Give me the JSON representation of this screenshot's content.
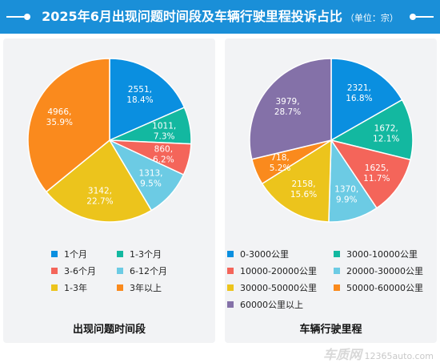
{
  "header": {
    "title": "2025年6月出现问题时间段及车辆行驶里程投诉占比",
    "unit": "（单位：宗）"
  },
  "colors": {
    "header_bg": "#1a8fd8",
    "panel_bg": "#f2f3f5"
  },
  "chart_data": [
    {
      "type": "pie",
      "title": "出现问题时间段",
      "legend_position": "bottom",
      "slices": [
        {
          "label": "1个月",
          "value": 2551,
          "percent": "18.4%",
          "color": "#0a8fe0"
        },
        {
          "label": "1-3个月",
          "value": 1011,
          "percent": "7.3%",
          "color": "#13b8a0"
        },
        {
          "label": "3-6个月",
          "value": 860,
          "percent": "6.2%",
          "color": "#f4655a"
        },
        {
          "label": "6-12个月",
          "value": 1313,
          "percent": "9.5%",
          "color": "#6ccbe4"
        },
        {
          "label": "1-3年",
          "value": 3142,
          "percent": "22.7%",
          "color": "#ecc41c"
        },
        {
          "label": "3年以上",
          "value": 4966,
          "percent": "35.9%",
          "color": "#fa8a1d"
        }
      ]
    },
    {
      "type": "pie",
      "title": "车辆行驶里程",
      "legend_position": "bottom",
      "slices": [
        {
          "label": "0-3000公里",
          "value": 2321,
          "percent": "16.8%",
          "color": "#0a8fe0"
        },
        {
          "label": "3000-10000公里",
          "value": 1672,
          "percent": "12.1%",
          "color": "#13b8a0"
        },
        {
          "label": "10000-20000公里",
          "value": 1625,
          "percent": "11.7%",
          "color": "#f4655a"
        },
        {
          "label": "20000-30000公里",
          "value": 1370,
          "percent": "9.9%",
          "color": "#6ccbe4"
        },
        {
          "label": "30000-50000公里",
          "value": 2158,
          "percent": "15.6%",
          "color": "#ecc41c"
        },
        {
          "label": "50000-60000公里",
          "value": 718,
          "percent": "5.2%",
          "color": "#fa8a1d"
        },
        {
          "label": "60000公里以上",
          "value": 3979,
          "percent": "28.7%",
          "color": "#8471a8"
        }
      ]
    }
  ],
  "watermark": {
    "logo": "车质网",
    "site": "12365auto.com"
  }
}
